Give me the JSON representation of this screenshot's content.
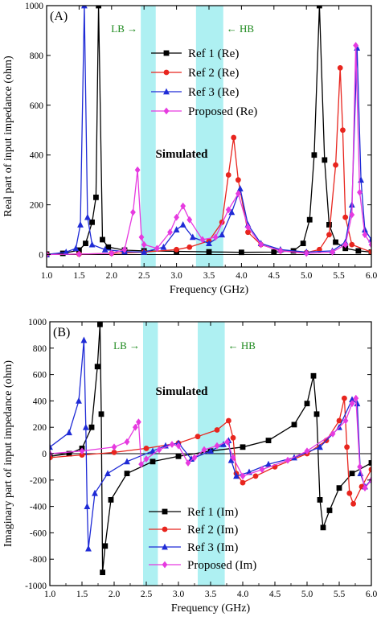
{
  "chart_data": [
    {
      "type": "line",
      "panel_label": "(A)",
      "annotation": "Simulated",
      "band_labels": [
        {
          "text": "LB",
          "arrow": "→"
        },
        {
          "text": "HB",
          "arrow": "←"
        }
      ],
      "bands": [
        {
          "from": 2.45,
          "to": 2.68
        },
        {
          "from": 3.3,
          "to": 3.72
        }
      ],
      "xlabel": "Frequency (GHz)",
      "ylabel": "Real part of input impedance (ohm)",
      "xlim": [
        1.0,
        6.0
      ],
      "ylim": [
        -50,
        1000
      ],
      "xticks": [
        "1.0",
        "1.5",
        "2.0",
        "2.5",
        "3.0",
        "3.5",
        "4.0",
        "4.5",
        "5.0",
        "5.5",
        "6.0"
      ],
      "yticks": [
        "0",
        "200",
        "400",
        "600",
        "800",
        "1000"
      ],
      "legend_position": "top-right",
      "series": [
        {
          "name": "Ref 1 (Re)",
          "color": "#000000",
          "marker": "square",
          "x": [
            1.0,
            1.25,
            1.5,
            1.6,
            1.7,
            1.76,
            1.8,
            1.86,
            1.95,
            2.2,
            2.5,
            3.0,
            3.5,
            4.0,
            4.5,
            4.8,
            4.95,
            5.05,
            5.12,
            5.2,
            5.28,
            5.35,
            5.45,
            5.6,
            5.8,
            6.0
          ],
          "y": [
            2,
            5,
            18,
            45,
            130,
            230,
            1000,
            60,
            30,
            18,
            15,
            13,
            11,
            9,
            10,
            15,
            45,
            140,
            400,
            1000,
            380,
            120,
            50,
            25,
            15,
            10
          ]
        },
        {
          "name": "Ref 2 (Re)",
          "color": "#e8251e",
          "marker": "circle",
          "x": [
            1.0,
            1.5,
            2.0,
            2.5,
            3.0,
            3.2,
            3.5,
            3.7,
            3.8,
            3.88,
            3.95,
            4.1,
            4.3,
            4.6,
            5.0,
            5.2,
            5.35,
            5.45,
            5.52,
            5.56,
            5.6,
            5.7,
            6.0
          ],
          "y": [
            0,
            2,
            5,
            10,
            20,
            30,
            55,
            130,
            320,
            470,
            300,
            90,
            40,
            15,
            8,
            20,
            80,
            360,
            750,
            500,
            150,
            40,
            10
          ]
        },
        {
          "name": "Ref 3 (Re)",
          "color": "#1f2bd6",
          "marker": "triangle",
          "x": [
            1.0,
            1.3,
            1.45,
            1.52,
            1.58,
            1.63,
            1.7,
            1.9,
            2.2,
            2.5,
            2.8,
            3.0,
            3.1,
            3.25,
            3.5,
            3.7,
            3.85,
            3.98,
            4.1,
            4.3,
            4.6,
            5.0,
            5.4,
            5.6,
            5.7,
            5.78,
            5.84,
            5.9,
            6.0
          ],
          "y": [
            0,
            10,
            25,
            120,
            1000,
            150,
            40,
            20,
            12,
            10,
            30,
            100,
            120,
            70,
            45,
            80,
            170,
            265,
            120,
            45,
            20,
            10,
            15,
            50,
            200,
            830,
            300,
            100,
            60
          ]
        },
        {
          "name": "Proposed (Re)",
          "color": "#e63ae0",
          "marker": "diamond",
          "x": [
            1.0,
            1.5,
            2.0,
            2.2,
            2.33,
            2.4,
            2.46,
            2.5,
            2.7,
            2.9,
            3.0,
            3.1,
            3.2,
            3.4,
            3.6,
            3.8,
            3.95,
            4.1,
            4.3,
            4.6,
            5.0,
            5.4,
            5.6,
            5.7,
            5.76,
            5.82,
            5.9,
            6.0
          ],
          "y": [
            0,
            2,
            5,
            20,
            170,
            340,
            70,
            40,
            25,
            90,
            150,
            195,
            140,
            60,
            70,
            180,
            245,
            110,
            40,
            15,
            5,
            10,
            40,
            160,
            840,
            250,
            80,
            40
          ]
        }
      ]
    },
    {
      "type": "line",
      "panel_label": "(B)",
      "annotation": "Simulated",
      "band_labels": [
        {
          "text": "LB",
          "arrow": "→"
        },
        {
          "text": "HB",
          "arrow": "←"
        }
      ],
      "bands": [
        {
          "from": 2.45,
          "to": 2.68
        },
        {
          "from": 3.3,
          "to": 3.72
        }
      ],
      "xlabel": "Frequency (GHz)",
      "ylabel": "Imaginary part of input impedance (ohm)",
      "xlim": [
        1.0,
        6.0
      ],
      "ylim": [
        -1000,
        1000
      ],
      "xticks": [
        "1.0",
        "1.5",
        "2.0",
        "2.5",
        "3.0",
        "3.5",
        "4.0",
        "4.5",
        "5.0",
        "5.5",
        "6.0"
      ],
      "yticks": [
        "-1000",
        "-800",
        "-600",
        "-400",
        "-200",
        "0",
        "200",
        "400",
        "600",
        "800",
        "1000"
      ],
      "legend_position": "bottom-right",
      "series": [
        {
          "name": "Ref 1 (Im)",
          "color": "#000000",
          "marker": "square",
          "x": [
            1.0,
            1.3,
            1.5,
            1.65,
            1.74,
            1.78,
            1.8,
            1.82,
            1.86,
            1.95,
            2.2,
            2.6,
            3.0,
            3.5,
            4.0,
            4.4,
            4.8,
            5.0,
            5.1,
            5.15,
            5.2,
            5.25,
            5.35,
            5.5,
            5.7,
            6.0
          ],
          "y": [
            -20,
            0,
            40,
            200,
            660,
            980,
            300,
            -900,
            -700,
            -350,
            -150,
            -60,
            -20,
            20,
            50,
            100,
            220,
            380,
            590,
            300,
            -350,
            -560,
            -430,
            -260,
            -150,
            -70
          ]
        },
        {
          "name": "Ref 2 (Im)",
          "color": "#e8251e",
          "marker": "circle",
          "x": [
            1.0,
            1.5,
            2.0,
            2.5,
            3.0,
            3.3,
            3.6,
            3.78,
            3.85,
            3.9,
            4.0,
            4.2,
            4.5,
            5.0,
            5.3,
            5.5,
            5.58,
            5.62,
            5.66,
            5.72,
            5.85,
            6.0
          ],
          "y": [
            -30,
            -10,
            10,
            40,
            80,
            130,
            180,
            250,
            120,
            -150,
            -220,
            -170,
            -100,
            0,
            100,
            250,
            420,
            50,
            -300,
            -380,
            -250,
            -120
          ]
        },
        {
          "name": "Ref 3 (Im)",
          "color": "#1f2bd6",
          "marker": "triangle",
          "x": [
            1.0,
            1.3,
            1.45,
            1.53,
            1.56,
            1.58,
            1.6,
            1.7,
            1.9,
            2.2,
            2.6,
            2.8,
            3.0,
            3.2,
            3.5,
            3.7,
            3.78,
            3.82,
            3.9,
            4.1,
            4.4,
            4.8,
            5.2,
            5.5,
            5.7,
            5.78,
            5.83,
            5.9,
            6.0
          ],
          "y": [
            50,
            160,
            400,
            860,
            200,
            -400,
            -720,
            -300,
            -150,
            -60,
            20,
            60,
            80,
            -40,
            20,
            70,
            100,
            -50,
            -170,
            -140,
            -80,
            -30,
            50,
            200,
            410,
            380,
            -150,
            -250,
            -200
          ]
        },
        {
          "name": "Proposed (Im)",
          "color": "#e63ae0",
          "marker": "diamond",
          "x": [
            1.0,
            1.5,
            2.0,
            2.2,
            2.33,
            2.38,
            2.42,
            2.5,
            2.7,
            2.9,
            3.0,
            3.15,
            3.25,
            3.4,
            3.6,
            3.76,
            3.85,
            4.0,
            4.3,
            4.7,
            5.0,
            5.4,
            5.6,
            5.7,
            5.76,
            5.82,
            5.9,
            6.0
          ],
          "y": [
            0,
            20,
            50,
            90,
            200,
            240,
            -80,
            -40,
            30,
            70,
            60,
            -70,
            -30,
            30,
            60,
            90,
            -30,
            -170,
            -120,
            -50,
            20,
            150,
            250,
            380,
            420,
            -100,
            -260,
            -200
          ]
        }
      ]
    }
  ]
}
